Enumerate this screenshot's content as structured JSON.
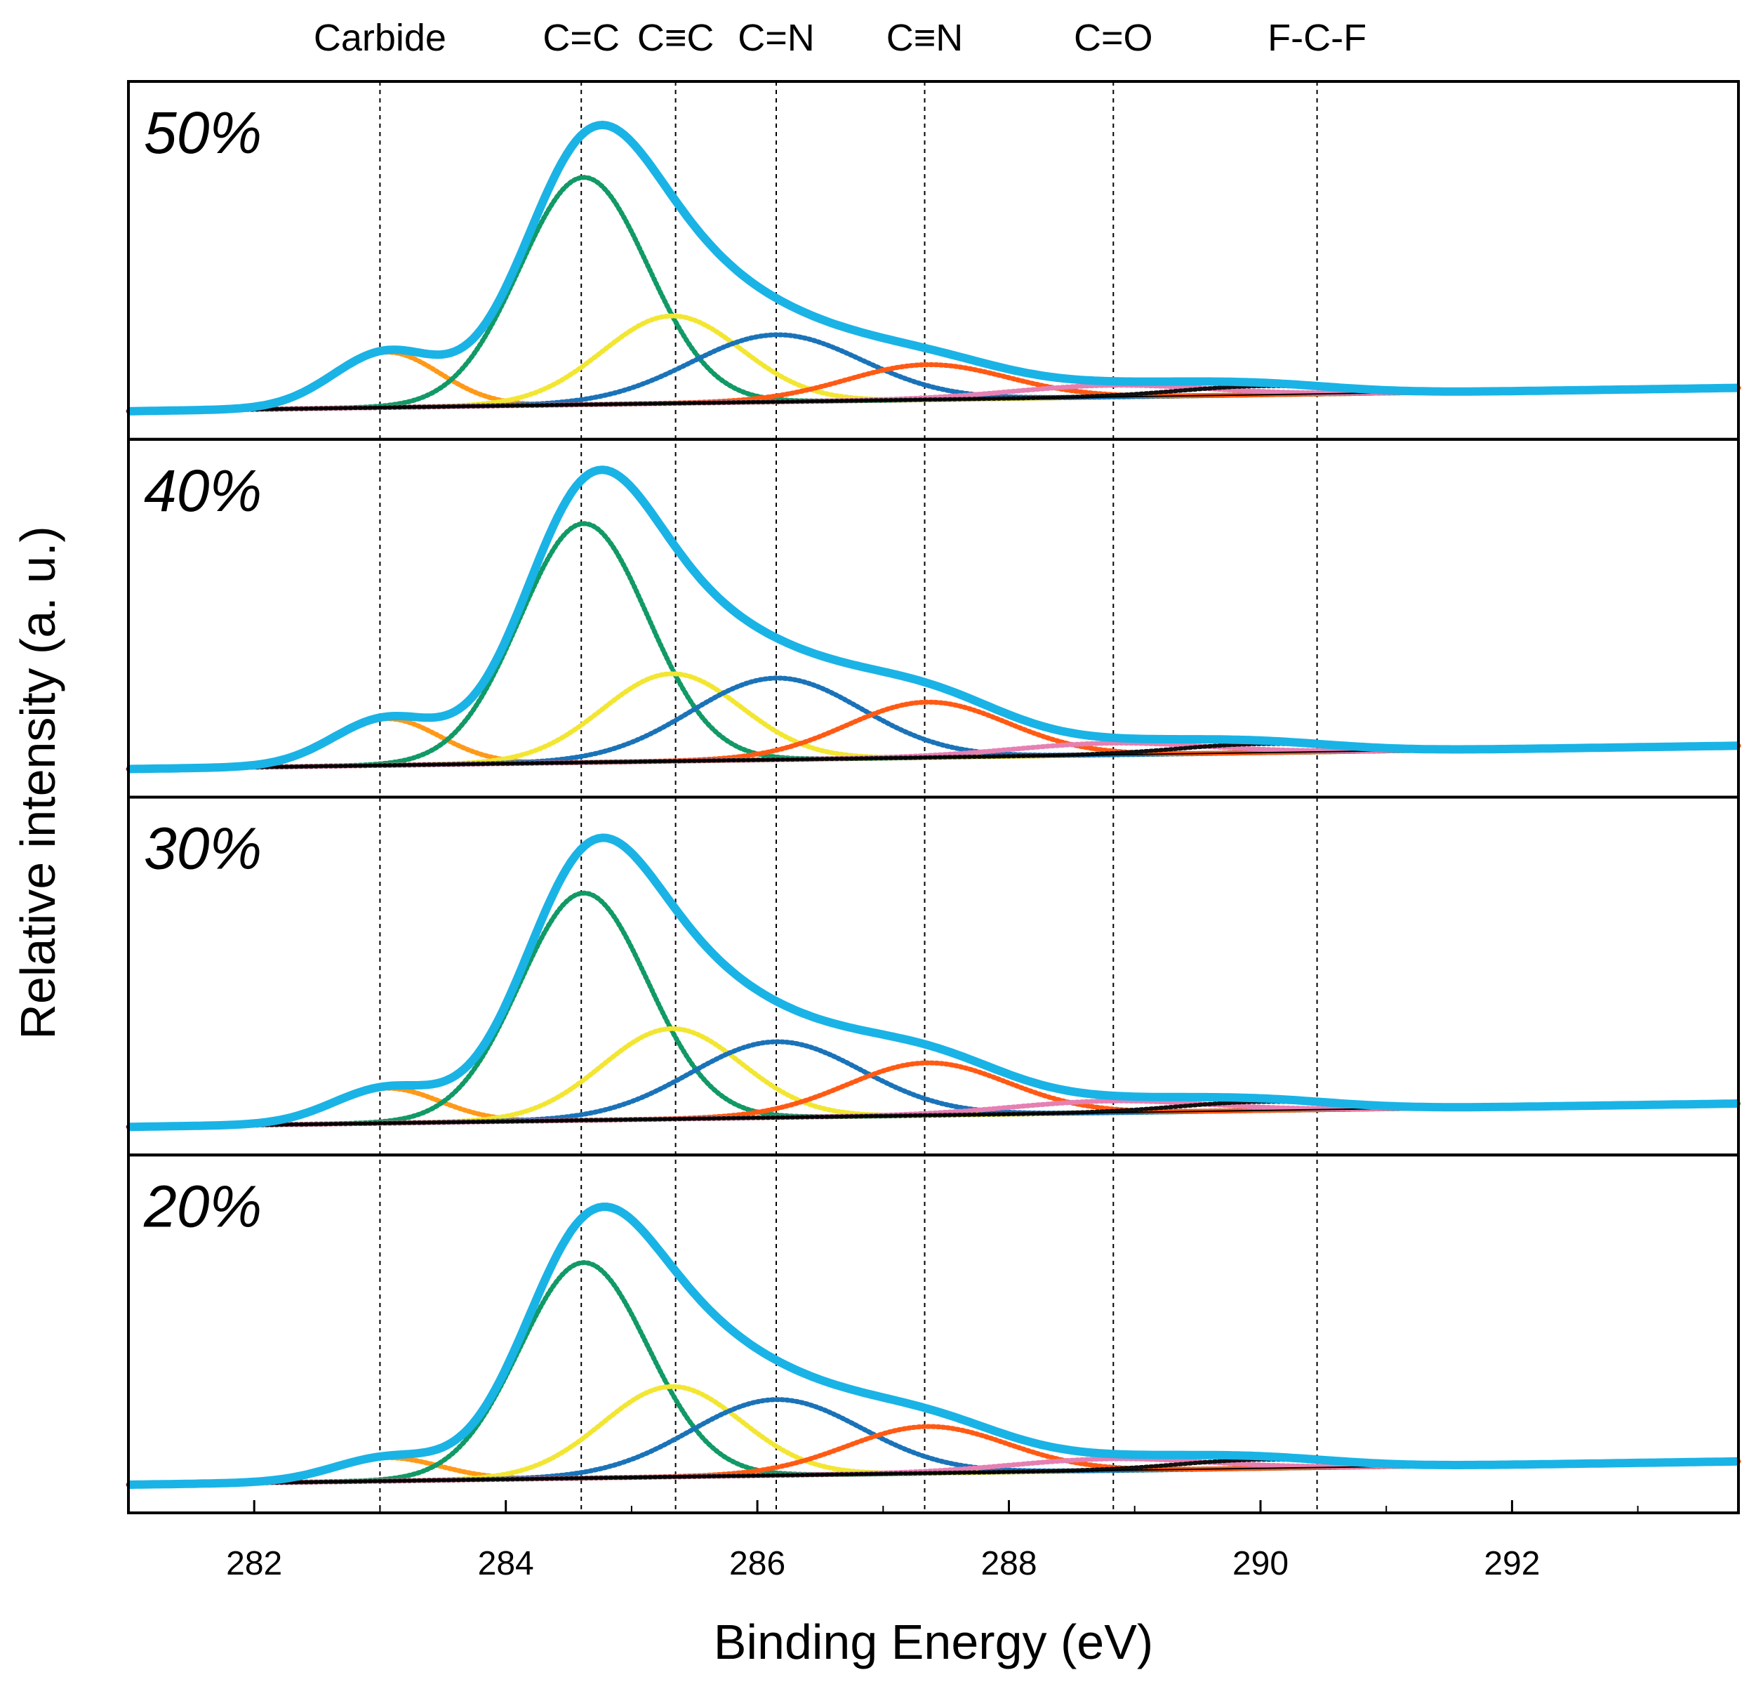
{
  "chart_data": {
    "type": "line",
    "title": "",
    "xlabel": "Binding Energy (eV)",
    "ylabel": "Relative intensity (a. u.)",
    "xlim": [
      281.0,
      293.8
    ],
    "x_ticks": [
      282,
      284,
      286,
      288,
      290,
      292
    ],
    "x_tick_labels": [
      "282",
      "284",
      "286",
      "288",
      "290",
      "292"
    ],
    "grid": false,
    "legend": "none",
    "reference_lines": [
      {
        "label": "Carbide",
        "x": 283.0
      },
      {
        "label": "C=C",
        "x": 284.6
      },
      {
        "label": "C≡C",
        "x": 285.35
      },
      {
        "label": "C=N",
        "x": 286.15
      },
      {
        "label": "C≡N",
        "x": 287.33
      },
      {
        "label": "C=O",
        "x": 288.83
      },
      {
        "label": "F-C-F",
        "x": 290.45
      }
    ],
    "component_colors": {
      "envelope": "#1ab3e6",
      "carbide": "#ff9919",
      "c_double_c": "#119966",
      "c_triple_c": "#f2e633",
      "c_double_n": "#1a73b8",
      "c_triple_n": "#ff5a14",
      "c_double_o": "#e680b3",
      "f_c_f": "#111111"
    },
    "panels": [
      {
        "label": "50%",
        "baseline": {
          "start": 0.0,
          "end": 0.08
        },
        "components": [
          {
            "name": "Carbide",
            "center": 283.05,
            "fwhm": 1.0,
            "height": 0.19
          },
          {
            "name": "C=C",
            "center": 284.62,
            "fwhm": 1.2,
            "height": 0.78
          },
          {
            "name": "C≡C",
            "center": 285.32,
            "fwhm": 1.3,
            "height": 0.3
          },
          {
            "name": "C=N",
            "center": 286.15,
            "fwhm": 1.6,
            "height": 0.23
          },
          {
            "name": "C≡N",
            "center": 287.35,
            "fwhm": 1.5,
            "height": 0.12
          },
          {
            "name": "C=O",
            "center": 288.8,
            "fwhm": 1.8,
            "height": 0.04
          },
          {
            "name": "F-C-F",
            "center": 290.0,
            "fwhm": 1.5,
            "height": 0.03
          }
        ]
      },
      {
        "label": "40%",
        "baseline": {
          "start": 0.0,
          "end": 0.08
        },
        "components": [
          {
            "name": "Carbide",
            "center": 283.05,
            "fwhm": 1.0,
            "height": 0.16
          },
          {
            "name": "C=C",
            "center": 284.62,
            "fwhm": 1.2,
            "height": 0.82
          },
          {
            "name": "C≡C",
            "center": 285.32,
            "fwhm": 1.3,
            "height": 0.3
          },
          {
            "name": "C=N",
            "center": 286.15,
            "fwhm": 1.6,
            "height": 0.28
          },
          {
            "name": "C≡N",
            "center": 287.35,
            "fwhm": 1.5,
            "height": 0.19
          },
          {
            "name": "C=O",
            "center": 288.8,
            "fwhm": 1.8,
            "height": 0.04
          },
          {
            "name": "F-C-F",
            "center": 290.0,
            "fwhm": 1.5,
            "height": 0.03
          }
        ]
      },
      {
        "label": "30%",
        "baseline": {
          "start": 0.0,
          "end": 0.08
        },
        "components": [
          {
            "name": "Carbide",
            "center": 283.05,
            "fwhm": 1.0,
            "height": 0.12
          },
          {
            "name": "C=C",
            "center": 284.62,
            "fwhm": 1.2,
            "height": 0.78
          },
          {
            "name": "C≡C",
            "center": 285.32,
            "fwhm": 1.3,
            "height": 0.31
          },
          {
            "name": "C=N",
            "center": 286.15,
            "fwhm": 1.6,
            "height": 0.26
          },
          {
            "name": "C≡N",
            "center": 287.35,
            "fwhm": 1.5,
            "height": 0.18
          },
          {
            "name": "C=O",
            "center": 288.8,
            "fwhm": 1.8,
            "height": 0.04
          },
          {
            "name": "F-C-F",
            "center": 290.0,
            "fwhm": 1.5,
            "height": 0.03
          }
        ]
      },
      {
        "label": "20%",
        "baseline": {
          "start": 0.0,
          "end": 0.08
        },
        "components": [
          {
            "name": "Carbide",
            "center": 283.05,
            "fwhm": 1.0,
            "height": 0.08
          },
          {
            "name": "C=C",
            "center": 284.62,
            "fwhm": 1.2,
            "height": 0.74
          },
          {
            "name": "C≡C",
            "center": 285.32,
            "fwhm": 1.3,
            "height": 0.31
          },
          {
            "name": "C=N",
            "center": 286.15,
            "fwhm": 1.6,
            "height": 0.26
          },
          {
            "name": "C≡N",
            "center": 287.35,
            "fwhm": 1.5,
            "height": 0.16
          },
          {
            "name": "C=O",
            "center": 288.8,
            "fwhm": 1.8,
            "height": 0.04
          },
          {
            "name": "F-C-F",
            "center": 290.0,
            "fwhm": 1.5,
            "height": 0.03
          }
        ]
      }
    ]
  }
}
